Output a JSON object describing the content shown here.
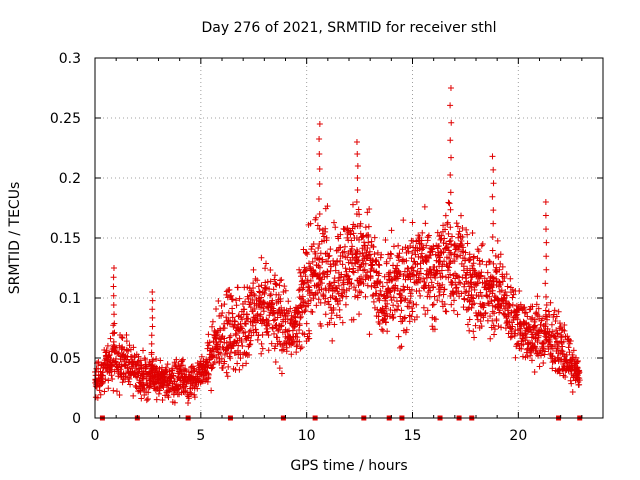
{
  "chart_data": {
    "type": "scatter",
    "title": "Day 276 of 2021, SRMTID for receiver sthl",
    "xlabel": "GPS time / hours",
    "ylabel": "SRMTID / TECUs",
    "xlim": [
      0,
      24
    ],
    "ylim": [
      0,
      0.3
    ],
    "xticks": [
      0,
      5,
      10,
      15,
      20
    ],
    "xtick_labels": [
      "0",
      "5",
      "10",
      "15",
      "20"
    ],
    "yticks": [
      0,
      0.05,
      0.1,
      0.15,
      0.2,
      0.25,
      0.3
    ],
    "ytick_labels": [
      "0",
      "0.05",
      "0.1",
      "0.15",
      "0.2",
      "0.25",
      "0.3"
    ],
    "grid": true,
    "marker": "+",
    "color": "#e00000",
    "data_gap_markers_hours": [
      0.35,
      2.0,
      4.4,
      6.4,
      8.9,
      10.4,
      12.7,
      13.9,
      14.5,
      16.3,
      17.2,
      17.8,
      21.9,
      22.9
    ],
    "envelope": {
      "description": "typical SRMTID level vs GPS time (hours, TECUs) used to summarize dense scatter",
      "hours": [
        0,
        0.5,
        1,
        1.5,
        2,
        2.5,
        3,
        3.5,
        4,
        4.5,
        5,
        5.5,
        6,
        6.5,
        7,
        7.5,
        8,
        8.5,
        9,
        9.5,
        10,
        10.5,
        11,
        11.5,
        12,
        12.5,
        13,
        13.5,
        14,
        14.5,
        15,
        15.5,
        16,
        16.5,
        17,
        17.5,
        18,
        18.5,
        19,
        19.5,
        20,
        20.5,
        21,
        21.5,
        22,
        22.5,
        22.9
      ],
      "median": [
        0.03,
        0.04,
        0.05,
        0.045,
        0.04,
        0.035,
        0.03,
        0.03,
        0.035,
        0.03,
        0.035,
        0.05,
        0.07,
        0.07,
        0.075,
        0.085,
        0.09,
        0.09,
        0.075,
        0.08,
        0.11,
        0.12,
        0.12,
        0.12,
        0.13,
        0.13,
        0.125,
        0.1,
        0.11,
        0.11,
        0.12,
        0.13,
        0.12,
        0.13,
        0.13,
        0.125,
        0.11,
        0.1,
        0.11,
        0.09,
        0.08,
        0.07,
        0.07,
        0.065,
        0.06,
        0.045,
        0.035
      ],
      "spread": [
        0.015,
        0.02,
        0.035,
        0.025,
        0.02,
        0.025,
        0.02,
        0.02,
        0.02,
        0.018,
        0.018,
        0.025,
        0.04,
        0.04,
        0.045,
        0.045,
        0.045,
        0.05,
        0.035,
        0.03,
        0.05,
        0.06,
        0.06,
        0.055,
        0.05,
        0.055,
        0.05,
        0.04,
        0.05,
        0.055,
        0.05,
        0.05,
        0.045,
        0.05,
        0.055,
        0.05,
        0.045,
        0.04,
        0.045,
        0.035,
        0.03,
        0.03,
        0.035,
        0.03,
        0.03,
        0.02,
        0.015
      ]
    },
    "notable_peaks": [
      {
        "x": 0.9,
        "y": 0.125
      },
      {
        "x": 2.7,
        "y": 0.105
      },
      {
        "x": 10.6,
        "y": 0.245
      },
      {
        "x": 12.4,
        "y": 0.23
      },
      {
        "x": 16.8,
        "y": 0.275
      },
      {
        "x": 18.8,
        "y": 0.218
      },
      {
        "x": 21.3,
        "y": 0.18
      }
    ]
  }
}
